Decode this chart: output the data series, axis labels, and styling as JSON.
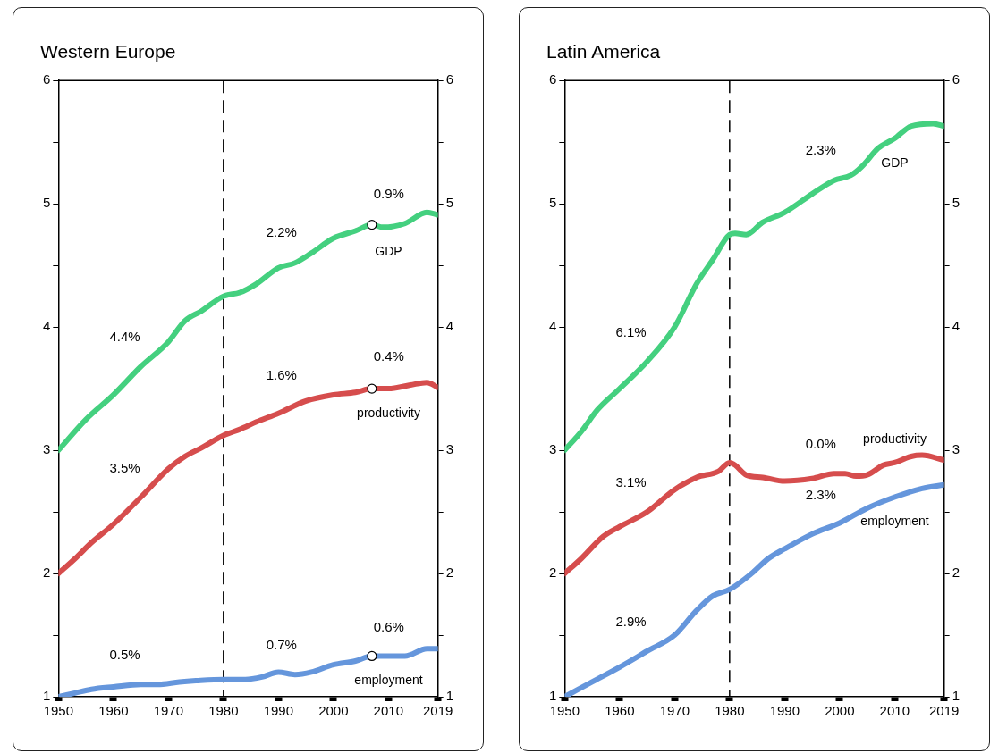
{
  "chart_data": [
    {
      "type": "line",
      "title": "Western Europe",
      "xlim": [
        1950,
        2019
      ],
      "xticks": [
        1950,
        1960,
        1970,
        1980,
        1990,
        2000,
        2010,
        2019
      ],
      "ylim": [
        1,
        6
      ],
      "yticks": [
        1,
        {
          "value": 1.5,
          "label": null
        },
        2,
        {
          "value": 2.5,
          "label": null
        },
        3,
        {
          "value": 3.5,
          "label": null
        },
        4,
        {
          "value": 4.5,
          "label": null
        },
        5,
        {
          "value": 5.5,
          "label": null
        },
        6
      ],
      "y2lim": [
        1,
        6
      ],
      "y2ticks": [
        1,
        {
          "value": 1.5,
          "label": null
        },
        2,
        {
          "value": 2.5,
          "label": null
        },
        3,
        {
          "value": 3.5,
          "label": null
        },
        4,
        {
          "value": 4.5,
          "label": null
        },
        5,
        {
          "value": 5.5,
          "label": null
        },
        6
      ],
      "grid": false,
      "legend": false,
      "marker": "none",
      "line_style": "solid",
      "ref_lines": [
        {
          "axis": "x",
          "value": 1980,
          "line_style": "dashed",
          "color": "#000000"
        }
      ],
      "series": [
        {
          "name": "GDP",
          "color": "#44d07f",
          "x": [
            1950,
            1955,
            1960,
            1965,
            1970,
            1973,
            1976,
            1980,
            1983,
            1986,
            1990,
            1993,
            1996,
            2000,
            2004,
            2007,
            2009,
            2013,
            2017,
            2019
          ],
          "values": [
            3.0,
            3.25,
            3.45,
            3.68,
            3.88,
            4.05,
            4.13,
            4.25,
            4.28,
            4.35,
            4.48,
            4.52,
            4.6,
            4.72,
            4.78,
            4.83,
            4.81,
            4.84,
            4.93,
            4.91
          ]
        },
        {
          "name": "productivity",
          "color": "#d64d4d",
          "x": [
            1950,
            1953,
            1956,
            1960,
            1965,
            1970,
            1973,
            1976,
            1980,
            1983,
            1986,
            1990,
            1995,
            2000,
            2004,
            2007,
            2010,
            2014,
            2017,
            2019
          ],
          "values": [
            2.0,
            2.12,
            2.25,
            2.4,
            2.62,
            2.85,
            2.95,
            3.02,
            3.12,
            3.17,
            3.23,
            3.3,
            3.4,
            3.45,
            3.47,
            3.5,
            3.5,
            3.53,
            3.55,
            3.51
          ]
        },
        {
          "name": "employment",
          "color": "#6596dc",
          "x": [
            1950,
            1953,
            1956,
            1960,
            1965,
            1968,
            1972,
            1975,
            1980,
            1984,
            1987,
            1990,
            1993,
            1996,
            2000,
            2004,
            2007,
            2009,
            2013,
            2017,
            2019
          ],
          "values": [
            1.0,
            1.03,
            1.06,
            1.08,
            1.1,
            1.1,
            1.12,
            1.13,
            1.14,
            1.14,
            1.16,
            1.2,
            1.18,
            1.2,
            1.26,
            1.29,
            1.33,
            1.33,
            1.33,
            1.39,
            1.39
          ]
        },
        {
          "type": "scatter",
          "marker": "circle",
          "color": "#ffffff",
          "x": [
            2007,
            2007,
            2007
          ],
          "values": [
            4.83,
            3.5,
            1.33
          ]
        }
      ],
      "annotations": [
        "4.4%",
        "2.2%",
        "0.9%",
        "3.5%",
        "1.6%",
        "0.4%",
        "0.5%",
        "0.7%",
        "0.6%"
      ]
    },
    {
      "type": "line",
      "title": "Latin America",
      "xlim": [
        1950,
        2019
      ],
      "xticks": [
        1950,
        1960,
        1970,
        1980,
        1990,
        2000,
        2010,
        2019
      ],
      "ylim": [
        1,
        6
      ],
      "yticks": [
        1,
        {
          "value": 1.5,
          "label": null
        },
        2,
        {
          "value": 2.5,
          "label": null
        },
        3,
        {
          "value": 3.5,
          "label": null
        },
        4,
        {
          "value": 4.5,
          "label": null
        },
        5,
        {
          "value": 5.5,
          "label": null
        },
        6
      ],
      "y2lim": [
        1,
        6
      ],
      "y2ticks": [
        1,
        {
          "value": 1.5,
          "label": null
        },
        2,
        {
          "value": 2.5,
          "label": null
        },
        3,
        {
          "value": 3.5,
          "label": null
        },
        4,
        {
          "value": 4.5,
          "label": null
        },
        5,
        {
          "value": 5.5,
          "label": null
        },
        6
      ],
      "grid": false,
      "legend": false,
      "marker": "none",
      "line_style": "solid",
      "ref_lines": [
        {
          "axis": "x",
          "value": 1980,
          "line_style": "dashed",
          "color": "#000000"
        }
      ],
      "series": [
        {
          "name": "GDP",
          "color": "#44d07f",
          "x": [
            1950,
            1953,
            1956,
            1960,
            1965,
            1970,
            1974,
            1977,
            1980,
            1981,
            1983,
            1986,
            1990,
            1995,
            1999,
            2002,
            2004,
            2007,
            2010,
            2013,
            2017,
            2019
          ],
          "values": [
            3.0,
            3.15,
            3.33,
            3.5,
            3.72,
            4.0,
            4.35,
            4.55,
            4.75,
            4.76,
            4.75,
            4.85,
            4.93,
            5.08,
            5.19,
            5.23,
            5.3,
            5.45,
            5.53,
            5.63,
            5.65,
            5.63
          ]
        },
        {
          "name": "productivity",
          "color": "#d64d4d",
          "x": [
            1950,
            1953,
            1957,
            1960,
            1965,
            1970,
            1974,
            1978,
            1980,
            1981,
            1983,
            1986,
            1990,
            1995,
            1999,
            2001,
            2003,
            2005,
            2008,
            2010,
            2013,
            2015,
            2019
          ],
          "values": [
            2.0,
            2.12,
            2.3,
            2.38,
            2.5,
            2.68,
            2.78,
            2.83,
            2.9,
            2.88,
            2.8,
            2.78,
            2.75,
            2.77,
            2.81,
            2.81,
            2.79,
            2.8,
            2.88,
            2.9,
            2.95,
            2.96,
            2.92
          ]
        },
        {
          "name": "employment",
          "color": "#6596dc",
          "x": [
            1950,
            1955,
            1960,
            1965,
            1970,
            1974,
            1977,
            1980,
            1984,
            1987,
            1990,
            1995,
            2000,
            2005,
            2010,
            2015,
            2019
          ],
          "values": [
            1.0,
            1.12,
            1.24,
            1.37,
            1.5,
            1.7,
            1.82,
            1.87,
            2.0,
            2.12,
            2.2,
            2.32,
            2.41,
            2.53,
            2.62,
            2.69,
            2.72
          ]
        }
      ],
      "annotations": [
        "6.1%",
        "2.3%",
        "3.1%",
        "0.0%",
        "2.9%",
        "2.3%"
      ]
    }
  ]
}
